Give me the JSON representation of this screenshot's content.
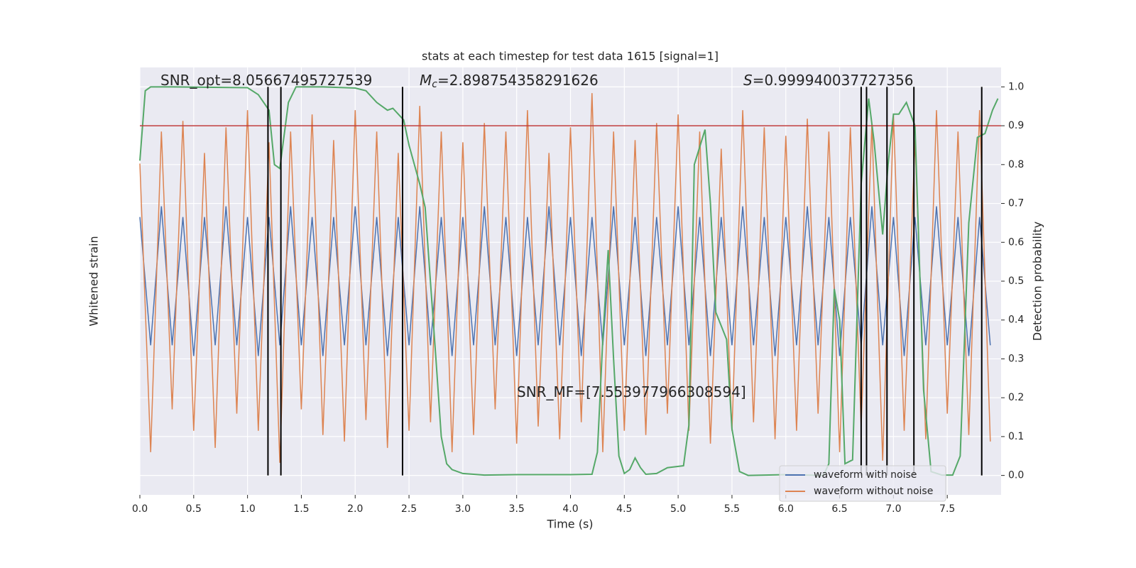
{
  "chart_data": {
    "type": "line",
    "title": "stats at each timestep for test data 1615 [signal=1]",
    "x_label": "Time (s)",
    "y_label": "Whitened strain",
    "y2_label": "Detection probability",
    "xlim": [
      0,
      8
    ],
    "ylim": [
      -1,
      1
    ],
    "y2lim": [
      -0.05,
      1.05
    ],
    "xticks": [
      {
        "value": 0,
        "label": "0.0"
      },
      0.5,
      {
        "value": 1,
        "label": "1.0"
      },
      1.5,
      {
        "value": 2,
        "label": "2.0"
      },
      2.5,
      {
        "value": 3,
        "label": "3.0"
      },
      3.5,
      {
        "value": 4,
        "label": "4.0"
      },
      4.5,
      {
        "value": 5,
        "label": "5.0"
      },
      5.5,
      {
        "value": 6,
        "label": "6.0"
      },
      6.5,
      {
        "value": 7,
        "label": "7.0"
      },
      7.5
    ],
    "y2ticks": [
      {
        "value": 0,
        "label": "0.0"
      },
      0.1,
      0.2,
      0.3,
      0.4,
      0.5,
      0.6,
      0.7,
      0.8,
      0.9,
      {
        "value": 1,
        "label": "1.0"
      }
    ],
    "grid": true,
    "legend": "lower right",
    "series": [
      {
        "name": "waveform with noise",
        "color": "#4c72b0",
        "x": [
          0,
          0.1,
          0.2,
          0.3,
          0.4,
          0.5,
          0.6,
          0.7,
          0.8,
          0.9,
          1,
          1.1,
          1.2,
          1.3,
          1.4,
          1.5,
          1.6,
          1.7,
          1.8,
          1.9,
          2,
          2.1,
          2.2,
          2.3,
          2.4,
          2.5,
          2.6,
          2.7,
          2.8,
          2.9,
          3,
          3.1,
          3.2,
          3.3,
          3.4,
          3.5,
          3.6,
          3.7,
          3.8,
          3.9,
          4,
          4.1,
          4.2,
          4.3,
          4.4,
          4.5,
          4.6,
          4.7,
          4.8,
          4.9,
          5,
          5.1,
          5.2,
          5.3,
          5.4,
          5.5,
          5.6,
          5.7,
          5.8,
          5.9,
          6,
          6.1,
          6.2,
          6.3,
          6.4,
          6.5,
          6.6,
          6.7,
          6.8,
          6.9,
          7,
          7.1,
          7.2,
          7.3,
          7.4,
          7.5,
          7.6,
          7.7,
          7.8,
          7.9
        ],
        "values": [
          0.3,
          -0.3,
          0.35,
          -0.3,
          0.3,
          -0.35,
          0.3,
          -0.3,
          0.35,
          -0.3,
          0.3,
          -0.35,
          0.3,
          -0.3,
          0.35,
          -0.3,
          0.3,
          -0.35,
          0.3,
          -0.3,
          0.35,
          -0.3,
          0.3,
          -0.35,
          0.3,
          -0.3,
          0.35,
          -0.3,
          0.3,
          -0.35,
          0.3,
          -0.3,
          0.35,
          -0.3,
          0.3,
          -0.35,
          0.3,
          -0.3,
          0.35,
          -0.3,
          0.3,
          -0.35,
          0.3,
          -0.3,
          0.35,
          -0.3,
          0.3,
          -0.35,
          0.3,
          -0.3,
          0.35,
          -0.3,
          0.3,
          -0.35,
          0.3,
          -0.3,
          0.35,
          -0.3,
          0.3,
          -0.35,
          0.3,
          -0.3,
          0.35,
          -0.3,
          0.3,
          -0.35,
          0.3,
          -0.3,
          0.35,
          -0.3,
          0.3,
          -0.35,
          0.3,
          -0.3,
          0.35,
          -0.3,
          0.3,
          -0.35,
          0.3,
          -0.3
        ]
      },
      {
        "name": "waveform without noise",
        "color": "#dd8452",
        "x": [
          0,
          0.1,
          0.2,
          0.3,
          0.4,
          0.5,
          0.6,
          0.7,
          0.8,
          0.9,
          1,
          1.1,
          1.2,
          1.3,
          1.4,
          1.5,
          1.6,
          1.7,
          1.8,
          1.9,
          2,
          2.1,
          2.2,
          2.3,
          2.4,
          2.5,
          2.6,
          2.7,
          2.8,
          2.9,
          3,
          3.1,
          3.2,
          3.3,
          3.4,
          3.5,
          3.6,
          3.7,
          3.8,
          3.9,
          4,
          4.1,
          4.2,
          4.3,
          4.4,
          4.5,
          4.6,
          4.7,
          4.8,
          4.9,
          5,
          5.1,
          5.2,
          5.3,
          5.4,
          5.5,
          5.6,
          5.7,
          5.8,
          5.9,
          6,
          6.1,
          6.2,
          6.3,
          6.4,
          6.5,
          6.6,
          6.7,
          6.8,
          6.9,
          7,
          7.1,
          7.2,
          7.3,
          7.4,
          7.5,
          7.6,
          7.7,
          7.8,
          7.9
        ],
        "values": [
          0.55,
          -0.8,
          0.7,
          -0.6,
          0.75,
          -0.7,
          0.6,
          -0.78,
          0.72,
          -0.62,
          0.8,
          -0.7,
          0.65,
          -0.85,
          0.7,
          -0.6,
          0.78,
          -0.72,
          0.66,
          -0.75,
          0.8,
          -0.65,
          0.7,
          -0.78,
          0.6,
          -0.7,
          0.82,
          -0.66,
          0.7,
          -0.8,
          0.65,
          -0.72,
          0.74,
          -0.6,
          0.7,
          -0.76,
          0.8,
          -0.68,
          0.6,
          -0.74,
          0.72,
          -0.66,
          0.88,
          -0.8,
          0.7,
          -0.7,
          0.66,
          -0.72,
          0.74,
          -0.62,
          0.78,
          -0.7,
          0.7,
          -0.76,
          0.62,
          -0.7,
          0.8,
          -0.66,
          0.72,
          -0.74,
          0.68,
          -0.7,
          0.76,
          -0.62,
          0.7,
          -0.8,
          0.72,
          -0.68,
          0.74,
          -0.84,
          0.78,
          -0.7,
          0.66,
          -0.74,
          0.8,
          -0.62,
          0.7,
          -0.72,
          0.8,
          -0.75
        ]
      },
      {
        "color": "#55a868",
        "axis": "y2",
        "x": [
          0,
          0.05,
          0.1,
          0.3,
          0.6,
          1,
          1.1,
          1.2,
          1.25,
          1.3,
          1.38,
          1.45,
          1.7,
          2,
          2.1,
          2.2,
          2.3,
          2.35,
          2.45,
          2.5,
          2.6,
          2.65,
          2.75,
          2.8,
          2.85,
          2.9,
          3,
          3.2,
          3.5,
          4,
          4.2,
          4.25,
          4.3,
          4.35,
          4.4,
          4.45,
          4.5,
          4.55,
          4.6,
          4.65,
          4.7,
          4.8,
          4.9,
          5.05,
          5.1,
          5.15,
          5.25,
          5.3,
          5.35,
          5.45,
          5.5,
          5.57,
          5.65,
          6,
          6.35,
          6.4,
          6.45,
          6.5,
          6.55,
          6.62,
          6.7,
          6.77,
          6.82,
          6.9,
          6.95,
          7,
          7.05,
          7.12,
          7.2,
          7.28,
          7.35,
          7.45,
          7.55,
          7.62,
          7.7,
          7.78,
          7.85,
          7.92,
          7.97
        ],
        "values": [
          0.81,
          0.99,
          1,
          1,
          0.999,
          0.998,
          0.98,
          0.94,
          0.8,
          0.79,
          0.96,
          1,
          1,
          0.997,
          0.99,
          0.96,
          0.94,
          0.945,
          0.915,
          0.85,
          0.75,
          0.69,
          0.3,
          0.1,
          0.03,
          0.015,
          0.005,
          0.001,
          0.002,
          0.002,
          0.003,
          0.06,
          0.35,
          0.58,
          0.3,
          0.05,
          0.005,
          0.015,
          0.045,
          0.02,
          0.003,
          0.005,
          0.02,
          0.025,
          0.13,
          0.8,
          0.89,
          0.7,
          0.42,
          0.35,
          0.12,
          0.01,
          0,
          0.002,
          0,
          0.03,
          0.48,
          0.4,
          0.03,
          0.04,
          0.75,
          0.97,
          0.86,
          0.62,
          0.8,
          0.93,
          0.93,
          0.96,
          0.9,
          0.22,
          0.01,
          0.001,
          0.001,
          0.05,
          0.65,
          0.87,
          0.88,
          0.94,
          0.97
        ]
      }
    ],
    "threshold": 0.9,
    "threshold_color": "#c03d3e",
    "vlines": [
      1.19,
      1.31,
      2.44,
      6.7,
      6.75,
      6.94,
      7.19,
      7.82
    ],
    "annotations": [
      {
        "text": "SNR_opt=8.05667495727539"
      },
      {
        "symbol": "M",
        "subscript": "c",
        "text": "=2.898754358291626"
      },
      {
        "symbol": "S",
        "text": "=0.999940037727356"
      },
      {
        "text": "SNR_MF=[7.553977966308594]"
      }
    ]
  }
}
